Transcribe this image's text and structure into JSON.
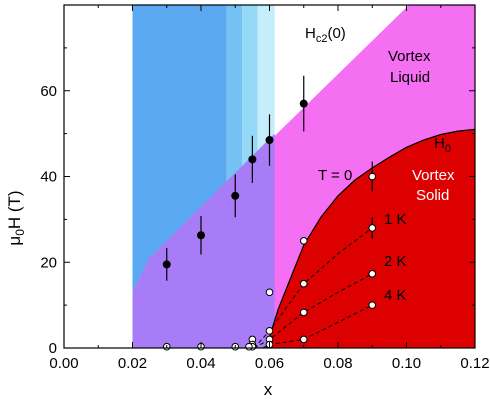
{
  "colors": {
    "blue_band": "#5aa9f0",
    "light_blue_1": "#74c2f4",
    "light_blue_2": "#96d8f8",
    "light_blue_3": "#c4eefb",
    "purple": "#a77cf6",
    "magenta": "#f56ff2",
    "red": "#dd0000"
  },
  "chart_data": {
    "type": "scatter",
    "xlabel": "x",
    "ylabel": "μ0H (T)",
    "ylabel_main": "μ",
    "ylabel_sub": "0",
    "ylabel_rest": "H (T)",
    "xlim": [
      0.0,
      0.12
    ],
    "ylim": [
      0,
      80
    ],
    "x_ticks": [
      "0.00",
      "0.02",
      "0.04",
      "0.06",
      "0.08",
      "0.10",
      "0.12"
    ],
    "x_tick_values": [
      0.0,
      0.02,
      0.04,
      0.06,
      0.08,
      0.1,
      0.12
    ],
    "y_ticks": [
      "0",
      "20",
      "40",
      "60"
    ],
    "y_tick_values": [
      0,
      20,
      40,
      60
    ],
    "grid": false,
    "regions": [
      {
        "label": "Vortex Liquid",
        "line1": "Vortex",
        "line2": "Liquid",
        "color": "#f56ff2"
      },
      {
        "label": "Vortex Solid",
        "line1": "Vortex",
        "line2": "Solid",
        "color": "#dd0000"
      }
    ],
    "annotations": {
      "hc2_main": "H",
      "hc2_sub": "c2",
      "hc2_rest": "(0)",
      "h0_main": "H",
      "h0_sub": "0",
      "t0": "T = 0",
      "k1": "1 K",
      "k2": "2 K",
      "k4": "4 K"
    },
    "hc2_points": [
      {
        "x": 0.03,
        "y": 19.5,
        "err": 3.8
      },
      {
        "x": 0.04,
        "y": 26.3,
        "err": 4.5
      },
      {
        "x": 0.05,
        "y": 35.5,
        "err": 5.0
      },
      {
        "x": 0.055,
        "y": 44.0,
        "err": 5.5
      },
      {
        "x": 0.06,
        "y": 48.5,
        "err": 6.0
      },
      {
        "x": 0.07,
        "y": 57.0,
        "err": 6.5
      }
    ],
    "t0_points": [
      {
        "x": 0.09,
        "y": 40.0,
        "err": 3.5
      },
      {
        "x": 0.07,
        "y": 25.0
      },
      {
        "x": 0.06,
        "y": 13.0
      },
      {
        "x": 0.055,
        "y": 2.0
      }
    ],
    "k1_points": [
      {
        "x": 0.09,
        "y": 28.0,
        "err": 2.5
      },
      {
        "x": 0.07,
        "y": 15.0
      },
      {
        "x": 0.06,
        "y": 4.0
      },
      {
        "x": 0.055,
        "y": 0.8
      }
    ],
    "k2_points": [
      {
        "x": 0.09,
        "y": 17.3
      },
      {
        "x": 0.07,
        "y": 8.3
      },
      {
        "x": 0.06,
        "y": 2.0
      },
      {
        "x": 0.055,
        "y": 0.3
      }
    ],
    "k4_points": [
      {
        "x": 0.09,
        "y": 10.0
      },
      {
        "x": 0.07,
        "y": 2.0
      },
      {
        "x": 0.06,
        "y": 0.8
      }
    ],
    "zero_points": [
      {
        "x": 0.03,
        "y": 0.3
      },
      {
        "x": 0.04,
        "y": 0.3
      },
      {
        "x": 0.05,
        "y": 0.3
      },
      {
        "x": 0.054,
        "y": 0.3
      }
    ]
  }
}
